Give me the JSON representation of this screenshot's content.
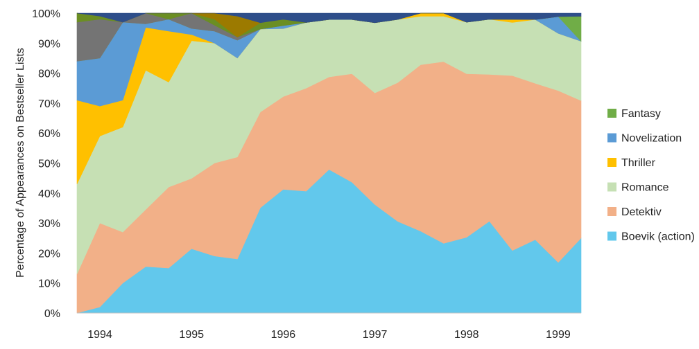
{
  "chart_data": {
    "type": "area",
    "stacked": true,
    "normalized": true,
    "title": "",
    "xlabel": "",
    "ylabel": "Percentage of Appearances on Bestseller Lists",
    "ylim": [
      0,
      100
    ],
    "yticks": [
      "0%",
      "10%",
      "20%",
      "30%",
      "40%",
      "50%",
      "60%",
      "70%",
      "80%",
      "90%",
      "100%"
    ],
    "xticks": [
      {
        "label": "1994",
        "t": 1994.25
      },
      {
        "label": "1995",
        "t": 1995.25
      },
      {
        "label": "1996",
        "t": 1996.25
      },
      {
        "label": "1997",
        "t": 1997.25
      },
      {
        "label": "1998",
        "t": 1998.25
      },
      {
        "label": "1999",
        "t": 1999.25
      }
    ],
    "x": [
      1994.0,
      1994.25,
      1994.5,
      1994.75,
      1995.0,
      1995.25,
      1995.5,
      1995.75,
      1996.0,
      1996.25,
      1996.5,
      1996.75,
      1997.0,
      1997.25,
      1997.5,
      1997.75,
      1998.0,
      1998.25,
      1998.5,
      1998.75,
      1999.0,
      1999.25,
      1999.5
    ],
    "grid": false,
    "legend_position": "right",
    "legend": [
      "Fantasy",
      "Novelization",
      "Thriller",
      "Romance",
      "Detektiv",
      "Boevik (action)"
    ],
    "series": [
      {
        "name": "Boevik (action)",
        "color": "#62c8ec",
        "values": [
          0,
          2,
          10,
          13,
          15,
          21,
          19,
          18,
          33,
          40,
          39,
          45,
          41,
          34,
          29,
          27,
          23,
          25,
          30,
          20,
          23,
          15,
          24
        ]
      },
      {
        "name": "Detektiv",
        "color": "#f2b088",
        "values": [
          13,
          28,
          17,
          16,
          27,
          23,
          31,
          34,
          30,
          30,
          33,
          29,
          34,
          35,
          44,
          55,
          60,
          54,
          48,
          56,
          49,
          51,
          44
        ]
      },
      {
        "name": "Romance",
        "color": "#c6e0b4",
        "values": [
          30,
          29,
          35,
          39,
          35,
          45,
          40,
          33,
          26,
          22,
          21,
          18,
          17,
          22,
          20,
          16,
          15,
          17,
          18,
          17,
          20,
          17,
          19
        ]
      },
      {
        "name": "Thriller",
        "color": "#ffc000",
        "values": [
          28,
          10,
          9,
          12,
          17,
          2,
          0,
          0,
          0,
          0,
          0,
          0,
          0,
          0,
          0,
          1,
          1,
          0,
          0,
          1,
          0,
          0,
          0
        ]
      },
      {
        "name": "Novelization",
        "color": "#5b9bd5",
        "values": [
          13,
          16,
          26,
          1,
          4,
          2,
          4,
          6,
          0,
          1,
          0,
          0,
          0,
          0,
          0,
          0,
          0,
          0,
          0,
          0,
          0,
          5,
          0
        ]
      },
      {
        "name": "Fantasy",
        "color": "#70ad47",
        "values": [
          0,
          0,
          0,
          0,
          0,
          0,
          0,
          0,
          0,
          0,
          0,
          0,
          0,
          0,
          0,
          0,
          0,
          0,
          0,
          0,
          0,
          0,
          8
        ]
      },
      {
        "name": "",
        "color": "#747474",
        "values": [
          13,
          13,
          0,
          3,
          0,
          5,
          2,
          1,
          0,
          0,
          0,
          0,
          0,
          0,
          0,
          0,
          0,
          0,
          0,
          0,
          0,
          0,
          0
        ]
      },
      {
        "name": "",
        "color": "#6b8e23",
        "values": [
          3,
          1,
          0,
          0,
          2,
          0,
          2,
          0,
          2,
          2,
          0,
          0,
          0,
          0,
          0,
          0,
          0,
          0,
          0,
          0,
          0,
          0,
          0
        ]
      },
      {
        "name": "",
        "color": "#9c7a00",
        "values": [
          0,
          0,
          0,
          0,
          0,
          0,
          2,
          7,
          0,
          0,
          0,
          0,
          0,
          0,
          0,
          0,
          0,
          0,
          0,
          0,
          0,
          0,
          0
        ]
      },
      {
        "name": "",
        "color": "#2e4e8a",
        "values": [
          0,
          1,
          3,
          0,
          0,
          0,
          0,
          1,
          3,
          2,
          3,
          2,
          2,
          3,
          2,
          0,
          0,
          3,
          2,
          2,
          2,
          1,
          1
        ]
      }
    ]
  }
}
